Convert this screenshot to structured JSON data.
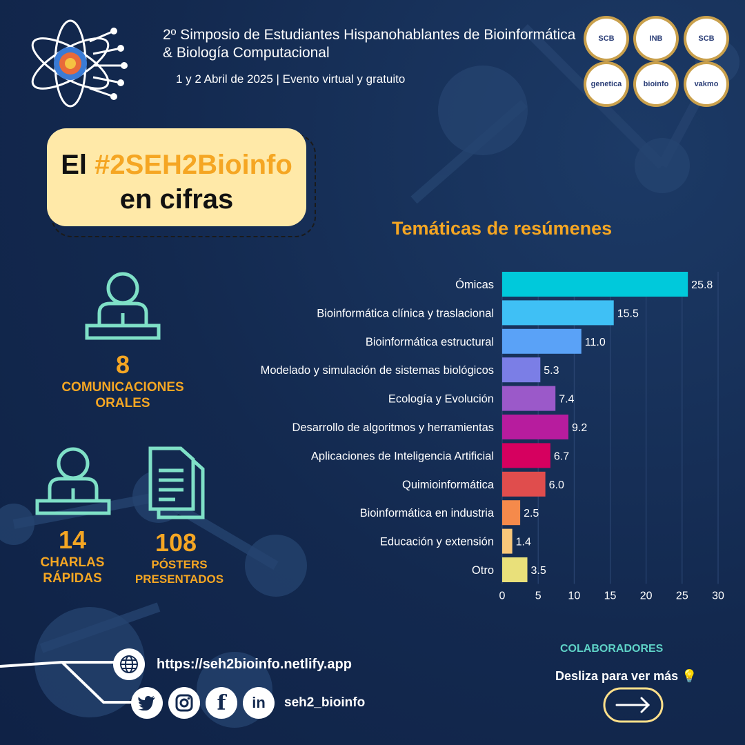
{
  "header": {
    "title": "2º Simposio de Estudiantes Hispanohablantes de Bioinformática & Biología Computacional",
    "subtitle": "1 y 2 Abril de 2025  |  Evento virtual y gratuito"
  },
  "banner": {
    "prefix": "El ",
    "hashtag": "#2SEH2Bioinfo",
    "line2": "en cifras"
  },
  "stats": [
    {
      "number": "8",
      "label_1": "COMUNICACIONES",
      "label_2": "ORALES",
      "icon": "speaker-podium-icon"
    },
    {
      "number": "14",
      "label_1": "CHARLAS",
      "label_2": "RÁPIDAS",
      "icon": "speaker-podium-icon"
    },
    {
      "number": "108",
      "label_1": "PÓSTERS",
      "label_2": "PRESENTADOS",
      "icon": "document-icon"
    }
  ],
  "logos": [
    "SCB",
    "INB",
    "SCB",
    "genetica",
    "bioinfo",
    "vakmo"
  ],
  "chart_data": {
    "type": "bar",
    "orientation": "horizontal",
    "title": "Temáticas de resúmenes",
    "categories": [
      "Ómicas",
      "Bioinformática clínica y traslacional",
      "Bioinformática estructural",
      "Modelado y simulación de sistemas biológicos",
      "Ecología y Evolución",
      "Desarrollo de algoritmos y herramientas",
      "Aplicaciones de Inteligencia Artificial",
      "Quimioinformática",
      "Bioinformática en industria",
      "Educación y extensión",
      "Otro"
    ],
    "values": [
      25.8,
      15.5,
      11.0,
      5.3,
      7.4,
      9.2,
      6.7,
      6.0,
      2.5,
      1.4,
      3.5
    ],
    "value_labels": [
      "25.8",
      "15.5",
      "11.0",
      "5.3",
      "7.4",
      "9.2",
      "6.7",
      "6.0",
      "2.5",
      "1.4",
      "3.5"
    ],
    "colors": [
      "#00c9db",
      "#3fc0f5",
      "#5aa2f7",
      "#7b7ee6",
      "#9b59c9",
      "#b71c9e",
      "#d6005f",
      "#e04d4d",
      "#f58a4b",
      "#f8c77a",
      "#e9e07a"
    ],
    "xlim": [
      0,
      30
    ],
    "xticks": [
      0,
      5,
      10,
      15,
      20,
      25,
      30
    ],
    "grid": true
  },
  "footer": {
    "url": "https://seh2bioinfo.netlify.app",
    "handle": "seh2_bioinfo",
    "collab_label": "COLABORADORES",
    "swipe_text": "Desliza para ver más 💡",
    "social_icons": [
      "twitter-icon",
      "instagram-icon",
      "facebook-icon",
      "linkedin-icon"
    ]
  }
}
